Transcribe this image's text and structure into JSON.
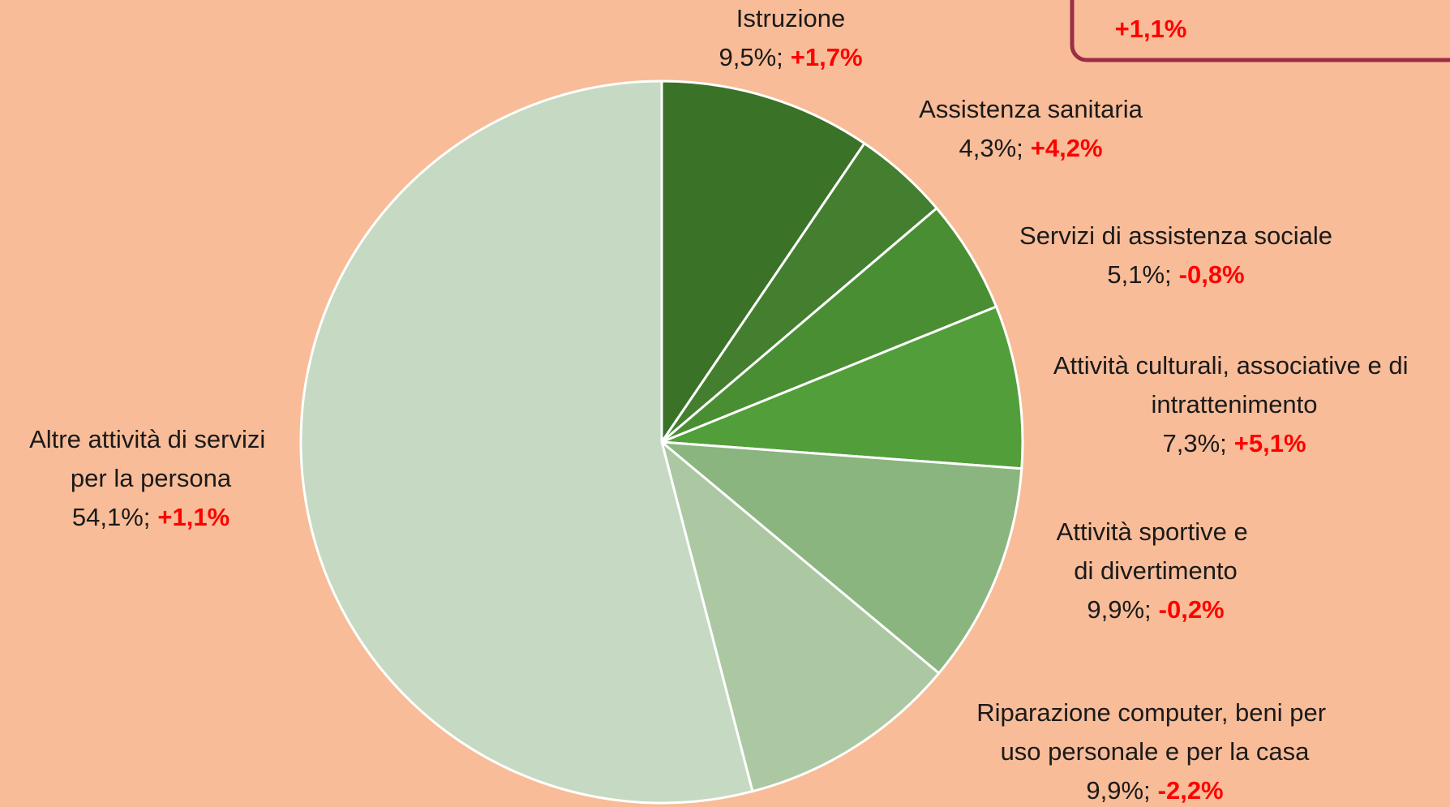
{
  "chart_data": {
    "type": "pie",
    "categories": [
      "Istruzione",
      "Assistenza sanitaria",
      "Servizi di assistenza sociale",
      "Attività culturali, associative e di intrattenimento",
      "Attività sportive e di divertimento",
      "Riparazione computer, beni per uso personale e per la casa",
      "Altre attività di servizi per la persona"
    ],
    "values": [
      9.5,
      4.3,
      5.1,
      7.3,
      9.9,
      9.9,
      54.1
    ],
    "value_labels": [
      "9,5%;",
      "4,3%;",
      "5,1%;",
      "7,3%;",
      "9,9%;",
      "9,9%;",
      "54,1%;"
    ],
    "change_labels": [
      "+1,7%",
      "+4,2%",
      "-0,8%",
      "+5,1%",
      "-0,2%",
      "-2,2%",
      "+1,1%"
    ],
    "colors": [
      "#3a7228",
      "#437f2e",
      "#4a8e33",
      "#529e3a",
      "#8ab57e",
      "#abc8a2",
      "#c6d9c2"
    ],
    "annotation": "+1,1%"
  }
}
